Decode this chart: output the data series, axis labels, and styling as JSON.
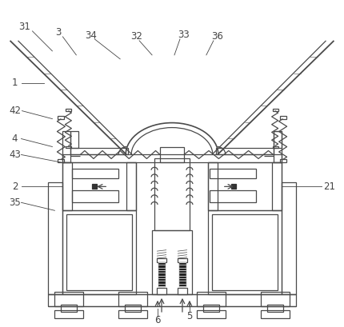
{
  "bg_color": "#ffffff",
  "lc": "#4a4a4a",
  "lw": 0.9,
  "fig_w": 4.3,
  "fig_h": 4.09,
  "dpi": 100
}
